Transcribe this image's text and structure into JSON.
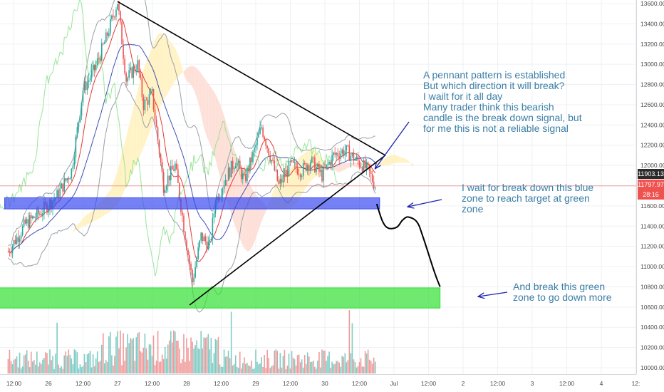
{
  "chart_data": {
    "type": "candlestick",
    "title": "",
    "y_axis": {
      "position": "right",
      "ticks": [
        13600,
        13400,
        13200,
        13000,
        12800,
        12600,
        12400,
        12200,
        12000,
        11800,
        11600,
        11400,
        11200,
        11000,
        10800,
        10600,
        10400,
        10200,
        10000
      ],
      "tick_labels": [
        "13600.00",
        "13400.00",
        "13200.00",
        "13000.00",
        "12800.00",
        "12600.00",
        "12400.00",
        "12200.00",
        "12000.00",
        "11800.00",
        "11600.00",
        "11400.00",
        "11200.00",
        "11000.00",
        "10800.00",
        "10600.00",
        "10400.00",
        "10200.00",
        "10000.00"
      ],
      "range": [
        9970,
        13640
      ]
    },
    "x_axis": {
      "tick_labels": [
        "12:00",
        "26",
        "12:00",
        "27",
        "12:00",
        "28",
        "12:00",
        "29",
        "12:00",
        "30",
        "12:00",
        "Jul",
        "12:00",
        "2",
        "12:00",
        "3",
        "12:00",
        "4",
        "12:"
      ],
      "tick_hours": [
        -12,
        0,
        12,
        24,
        36,
        48,
        60,
        72,
        84,
        96,
        108,
        120,
        132,
        144,
        156,
        168,
        180,
        192,
        204
      ]
    },
    "price_labels": [
      {
        "label": "11903.13",
        "value": 11903.13,
        "color": "#2b2b2b"
      },
      {
        "label": "11797.97",
        "value": 11797.97,
        "color": "#ef5350"
      },
      {
        "label": "28:16",
        "value": 11730,
        "color": "#ef5350"
      }
    ],
    "current_price": 11797.97,
    "anchors": [
      {
        "h": -14,
        "p": 11150
      },
      {
        "h": -8,
        "p": 11420
      },
      {
        "h": -3,
        "p": 11530
      },
      {
        "h": 3,
        "p": 11700
      },
      {
        "h": 8,
        "p": 11950
      },
      {
        "h": 12,
        "p": 12750
      },
      {
        "h": 16,
        "p": 12950
      },
      {
        "h": 20,
        "p": 13250
      },
      {
        "h": 24,
        "p": 13620
      },
      {
        "h": 27,
        "p": 12850
      },
      {
        "h": 31,
        "p": 13000
      },
      {
        "h": 33,
        "p": 12600
      },
      {
        "h": 36,
        "p": 12700
      },
      {
        "h": 40,
        "p": 11800
      },
      {
        "h": 44,
        "p": 12000
      },
      {
        "h": 47,
        "p": 11400
      },
      {
        "h": 50,
        "p": 10850
      },
      {
        "h": 53,
        "p": 11300
      },
      {
        "h": 56,
        "p": 11200
      },
      {
        "h": 58,
        "p": 11650
      },
      {
        "h": 62,
        "p": 11900
      },
      {
        "h": 65,
        "p": 12050
      },
      {
        "h": 68,
        "p": 11850
      },
      {
        "h": 71,
        "p": 12100
      },
      {
        "h": 74,
        "p": 12380
      },
      {
        "h": 77,
        "p": 12100
      },
      {
        "h": 80,
        "p": 11800
      },
      {
        "h": 84,
        "p": 12000
      },
      {
        "h": 88,
        "p": 11950
      },
      {
        "h": 91,
        "p": 12050
      },
      {
        "h": 95,
        "p": 11900
      },
      {
        "h": 99,
        "p": 12100
      },
      {
        "h": 103,
        "p": 12150
      },
      {
        "h": 107,
        "p": 12050
      },
      {
        "h": 111,
        "p": 11950
      },
      {
        "h": 113.5,
        "p": 11800
      }
    ],
    "pennant": {
      "upper_line": [
        {
          "h": 24,
          "p": 13620
        },
        {
          "h": 117,
          "p": 12100
        }
      ],
      "lower_line": [
        {
          "h": 49,
          "p": 10620
        },
        {
          "h": 117,
          "p": 12100
        }
      ]
    },
    "zones": [
      {
        "name": "blue",
        "from_h": -15.2,
        "to_h": 115,
        "low": 11570,
        "high": 11680,
        "color": "#3b4cf0"
      },
      {
        "name": "green",
        "from_h": -17,
        "to_h": 136,
        "low": 10590,
        "high": 10790,
        "color": "#33e033"
      }
    ],
    "projection": [
      {
        "h": 114,
        "p": 11620
      },
      {
        "h": 116,
        "p": 11450
      },
      {
        "h": 118,
        "p": 11380
      },
      {
        "h": 121,
        "p": 11390
      },
      {
        "h": 123,
        "p": 11460
      },
      {
        "h": 125,
        "p": 11490
      },
      {
        "h": 128,
        "p": 11440
      },
      {
        "h": 130,
        "p": 11300
      },
      {
        "h": 134,
        "p": 10950
      },
      {
        "h": 136,
        "p": 10800
      }
    ],
    "annotations": [
      {
        "text": "A pennant pattern is established\nBut which direction it will break?\nI  wailt for it all day\nMany trader think this bearish\ncandle is the break down signal, but\nfor me this is not a reliable signal"
      },
      {
        "text": "I wait for break down this blue\nzone to reach target at green\nzone"
      },
      {
        "text": "And break this green\nzone to go down more"
      }
    ]
  },
  "colors": {
    "up": "#26a69a",
    "down": "#ef5350",
    "annotation": "#3a7ea6",
    "arrow": "#1a22b0",
    "trendline": "#000000",
    "cloud_up": "#fff2c4",
    "cloud_down": "#fde0d8"
  }
}
